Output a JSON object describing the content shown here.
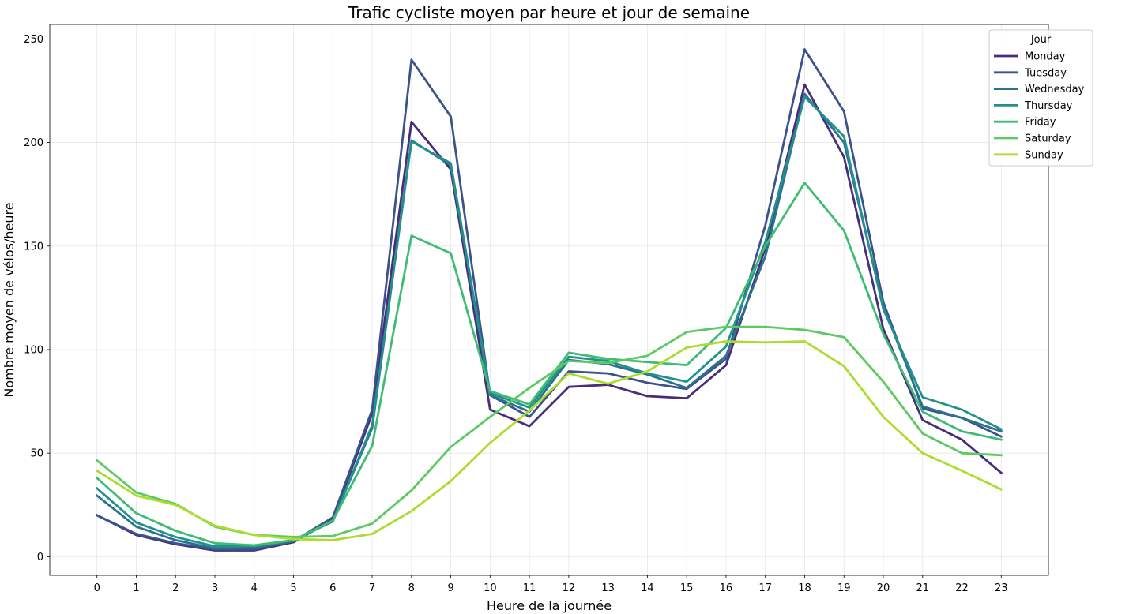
{
  "chart_data": {
    "type": "line",
    "title": "Trafic cycliste moyen par heure et jour de semaine",
    "xlabel": "Heure de la journée",
    "ylabel": "Nombre moyen de vélos/heure",
    "x": [
      0,
      1,
      2,
      3,
      4,
      5,
      6,
      7,
      8,
      9,
      10,
      11,
      12,
      13,
      14,
      15,
      16,
      17,
      18,
      19,
      20,
      21,
      22,
      23
    ],
    "x_tick_labels": [
      "0",
      "1",
      "2",
      "3",
      "4",
      "5",
      "6",
      "7",
      "8",
      "9",
      "10",
      "11",
      "12",
      "13",
      "14",
      "15",
      "16",
      "17",
      "18",
      "19",
      "20",
      "21",
      "22",
      "23"
    ],
    "xlim": [
      -1.2,
      24.2
    ],
    "ylim": [
      -9,
      257
    ],
    "y_ticks": [
      0,
      50,
      100,
      150,
      200,
      250
    ],
    "y_tick_labels": [
      "0",
      "50",
      "100",
      "150",
      "200",
      "250"
    ],
    "grid": true,
    "legend": {
      "title": "Jour",
      "position": "top-right"
    },
    "series": [
      {
        "name": "Monday",
        "color": "#472d7b",
        "values": [
          20,
          10.5,
          6,
          3,
          3,
          7,
          18,
          69,
          210,
          187,
          71,
          63,
          82,
          83,
          77.5,
          76.5,
          92.5,
          149,
          228,
          193,
          110,
          66,
          56.5,
          40.5
        ]
      },
      {
        "name": "Tuesday",
        "color": "#3b528b",
        "values": [
          20,
          11,
          6.5,
          3.5,
          3.5,
          7.5,
          19,
          71,
          240,
          212.5,
          78,
          67.5,
          89.5,
          88.5,
          84,
          81,
          95.5,
          160,
          245,
          215,
          123,
          71.5,
          67,
          58
        ]
      },
      {
        "name": "Wednesday",
        "color": "#2c728e",
        "values": [
          29.5,
          14.5,
          8,
          4,
          4.5,
          7.5,
          17.5,
          62,
          201,
          189,
          78,
          70,
          95,
          93,
          88,
          81.5,
          97,
          145,
          223.5,
          200,
          121,
          72.5,
          67,
          60.5
        ]
      },
      {
        "name": "Thursday",
        "color": "#21918c",
        "values": [
          33,
          16.5,
          9.5,
          5,
          5,
          8,
          17,
          63.5,
          200.5,
          190,
          79,
          72,
          96.5,
          94.5,
          88.5,
          84.5,
          101.5,
          152,
          222,
          203,
          119.5,
          77,
          71,
          61.5
        ]
      },
      {
        "name": "Friday",
        "color": "#3fbc73",
        "values": [
          38,
          21,
          12.5,
          6.5,
          5.5,
          8,
          17.5,
          53.5,
          155,
          146.5,
          80,
          73.5,
          98.5,
          95.5,
          94,
          92.5,
          110.5,
          150,
          180.5,
          157.5,
          107.5,
          70,
          60.5,
          56.5
        ]
      },
      {
        "name": "Saturday",
        "color": "#5ec962",
        "values": [
          46.5,
          31,
          25.5,
          14.5,
          10.5,
          9.5,
          10,
          16,
          32,
          53,
          67.5,
          81.5,
          94.5,
          93.5,
          97,
          108.5,
          111,
          111,
          109.5,
          106,
          84.5,
          59.5,
          50,
          49
        ]
      },
      {
        "name": "Sunday",
        "color": "#addc30",
        "values": [
          41.5,
          29.5,
          25,
          15,
          10.5,
          8.5,
          8,
          11,
          22,
          36.5,
          55,
          70.5,
          88.5,
          83.5,
          89.5,
          101,
          104,
          103.5,
          104,
          92,
          67.5,
          50,
          41.5,
          32.5
        ]
      }
    ]
  }
}
